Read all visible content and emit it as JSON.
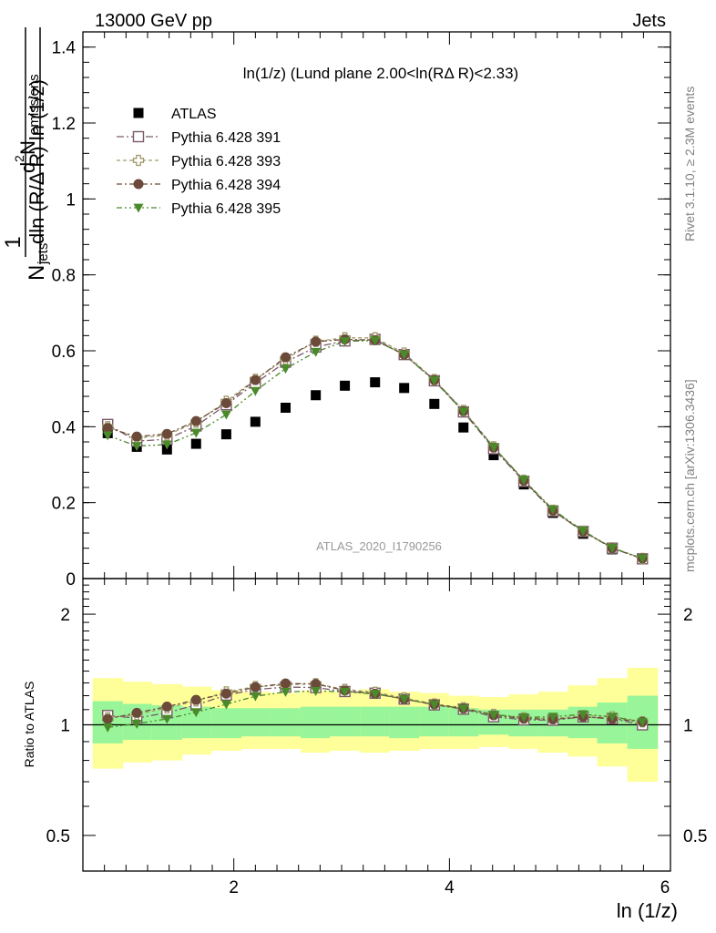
{
  "header": {
    "left": "13000 GeV pp",
    "right": "Jets"
  },
  "plot_title": "ln(1/z) (Lund plane 2.00<ln(RΔ R)<2.33)",
  "analysis_tag": "ATLAS_2020_I1790256",
  "side_labels": {
    "rivet": "Rivet 3.1.10, ≥ 2.3M events",
    "mcplots": "mcplots.cern.ch [arXiv:1306.3436]"
  },
  "ratio_ylabel": "Ratio to ATLAS",
  "xlabel": "ln (1/z)",
  "colors": {
    "band_inner": "#99f599",
    "band_outer": "#ffff99"
  },
  "chart_data": [
    {
      "type": "scatter",
      "ylabel_parts": [
        "1",
        "N",
        "jets",
        "d",
        "2",
        " N",
        "emissions",
        "dln (R/Δ R) ln (1/z)"
      ],
      "xlim": [
        0.6,
        6.05
      ],
      "ylim": [
        0,
        1.44
      ],
      "yticks": [
        0,
        0.2,
        0.4,
        0.6,
        0.8,
        1,
        1.2,
        1.4
      ],
      "ytick_labels": [
        "0",
        "0.2",
        "0.4",
        "0.6",
        "0.8",
        "1",
        "1.2",
        "1.4"
      ],
      "x": [
        0.83,
        1.1,
        1.38,
        1.65,
        1.93,
        2.2,
        2.48,
        2.76,
        3.03,
        3.31,
        3.58,
        3.86,
        4.13,
        4.41,
        4.69,
        4.96,
        5.24,
        5.51,
        5.79
      ],
      "series": [
        {
          "name": "ATLAS",
          "marker": "square-filled",
          "color": "#000000",
          "values": [
            0.383,
            0.347,
            0.34,
            0.355,
            0.38,
            0.413,
            0.45,
            0.483,
            0.508,
            0.517,
            0.502,
            0.46,
            0.398,
            0.325,
            0.248,
            0.173,
            0.118,
            0.077,
            0.052
          ]
        },
        {
          "name": "Pythia 6.428 391",
          "marker": "square-open",
          "color": "#7a5a6a",
          "dash": "8,3,2,3",
          "values": [
            0.406,
            0.362,
            0.367,
            0.402,
            0.458,
            0.515,
            0.57,
            0.61,
            0.626,
            0.63,
            0.59,
            0.521,
            0.439,
            0.342,
            0.256,
            0.178,
            0.124,
            0.08,
            0.052
          ]
        },
        {
          "name": "Pythia 6.428 393",
          "marker": "cross-open",
          "color": "#a09a6a",
          "dash": "4,3",
          "values": [
            0.4,
            0.37,
            0.378,
            0.412,
            0.467,
            0.525,
            0.578,
            0.625,
            0.634,
            0.634,
            0.594,
            0.524,
            0.443,
            0.347,
            0.259,
            0.18,
            0.125,
            0.081,
            0.053
          ]
        },
        {
          "name": "Pythia 6.428 394",
          "marker": "circle-filled",
          "color": "#6b4a3a",
          "dash": "6,3,2,3",
          "values": [
            0.397,
            0.374,
            0.381,
            0.415,
            0.462,
            0.523,
            0.583,
            0.624,
            0.63,
            0.628,
            0.59,
            0.523,
            0.441,
            0.345,
            0.258,
            0.179,
            0.124,
            0.08,
            0.053
          ]
        },
        {
          "name": "Pythia 6.428 395",
          "marker": "triangle-down-filled",
          "color": "#4a8a2a",
          "dash": "6,3,2,3,2,3",
          "values": [
            0.377,
            0.349,
            0.353,
            0.384,
            0.432,
            0.494,
            0.553,
            0.597,
            0.625,
            0.627,
            0.59,
            0.522,
            0.44,
            0.346,
            0.26,
            0.182,
            0.126,
            0.081,
            0.053
          ]
        }
      ]
    },
    {
      "type": "line",
      "ylabel": "Ratio to ATLAS",
      "xlabel": "ln (1/z)",
      "xlim": [
        0.6,
        6.05
      ],
      "ylim": [
        0.4,
        2.5
      ],
      "ylog": true,
      "yticks": [
        0.5,
        1,
        2
      ],
      "ytick_labels": [
        "0.5",
        "1",
        "2"
      ],
      "xticks": [
        2,
        4,
        6
      ],
      "xtick_labels": [
        "2",
        "4",
        "6"
      ],
      "x_edges": [
        0.69,
        0.97,
        1.24,
        1.52,
        1.79,
        2.07,
        2.34,
        2.62,
        2.89,
        3.17,
        3.44,
        3.72,
        3.99,
        4.27,
        4.55,
        4.82,
        5.1,
        5.37,
        5.65,
        5.93
      ],
      "band_inner": {
        "lo": [
          0.89,
          0.91,
          0.91,
          0.92,
          0.92,
          0.93,
          0.93,
          0.92,
          0.93,
          0.93,
          0.92,
          0.93,
          0.93,
          0.94,
          0.93,
          0.93,
          0.92,
          0.89,
          0.86
        ],
        "hi": [
          1.16,
          1.14,
          1.13,
          1.12,
          1.11,
          1.11,
          1.11,
          1.12,
          1.12,
          1.12,
          1.12,
          1.12,
          1.11,
          1.1,
          1.1,
          1.1,
          1.12,
          1.15,
          1.2
        ]
      },
      "band_outer": {
        "lo": [
          0.76,
          0.79,
          0.8,
          0.83,
          0.85,
          0.86,
          0.86,
          0.84,
          0.85,
          0.84,
          0.85,
          0.86,
          0.86,
          0.87,
          0.86,
          0.84,
          0.82,
          0.77,
          0.7
        ],
        "hi": [
          1.34,
          1.31,
          1.29,
          1.27,
          1.24,
          1.23,
          1.22,
          1.24,
          1.23,
          1.25,
          1.23,
          1.22,
          1.2,
          1.19,
          1.21,
          1.23,
          1.28,
          1.34,
          1.43
        ]
      },
      "series": [
        {
          "name": "Pythia 6.428 391",
          "values": [
            1.06,
            1.043,
            1.079,
            1.132,
            1.205,
            1.247,
            1.267,
            1.263,
            1.232,
            1.219,
            1.175,
            1.133,
            1.103,
            1.052,
            1.032,
            1.029,
            1.051,
            1.039,
            1.0
          ]
        },
        {
          "name": "Pythia 6.428 393",
          "values": [
            1.044,
            1.066,
            1.112,
            1.161,
            1.229,
            1.271,
            1.284,
            1.294,
            1.248,
            1.226,
            1.183,
            1.139,
            1.113,
            1.068,
            1.044,
            1.04,
            1.059,
            1.052,
            1.019
          ]
        },
        {
          "name": "Pythia 6.428 394",
          "values": [
            1.037,
            1.078,
            1.121,
            1.169,
            1.216,
            1.266,
            1.296,
            1.292,
            1.24,
            1.215,
            1.175,
            1.137,
            1.108,
            1.062,
            1.04,
            1.035,
            1.051,
            1.039,
            1.019
          ]
        },
        {
          "name": "Pythia 6.428 395",
          "values": [
            0.984,
            1.006,
            1.038,
            1.082,
            1.137,
            1.196,
            1.229,
            1.236,
            1.23,
            1.213,
            1.175,
            1.135,
            1.106,
            1.065,
            1.048,
            1.052,
            1.068,
            1.052,
            1.019
          ]
        }
      ]
    }
  ]
}
